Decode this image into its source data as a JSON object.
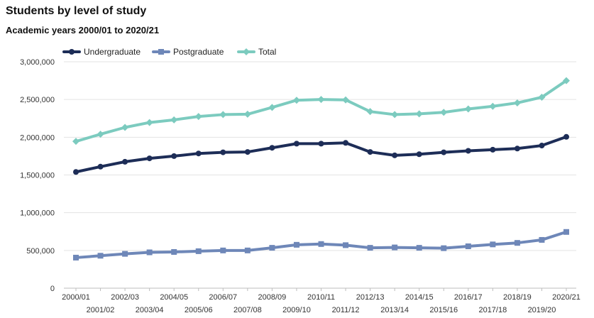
{
  "chart_data": {
    "type": "line",
    "title": "Students by level of study",
    "subtitle": "Academic years 2000/01 to 2020/21",
    "xlabel": "",
    "ylabel": "",
    "ylim": [
      0,
      3000000
    ],
    "yticks": [
      0,
      500000,
      1000000,
      1500000,
      2000000,
      2500000,
      3000000
    ],
    "ytick_labels": [
      "0",
      "500,000",
      "1,000,000",
      "1,500,000",
      "2,000,000",
      "2,500,000",
      "3,000,000"
    ],
    "grid": true,
    "legend_position": "top-left",
    "categories": [
      "2000/01",
      "2001/02",
      "2002/03",
      "2003/04",
      "2004/05",
      "2005/06",
      "2006/07",
      "2007/08",
      "2008/09",
      "2009/10",
      "2010/11",
      "2011/12",
      "2012/13",
      "2013/14",
      "2014/15",
      "2015/16",
      "2016/17",
      "2017/18",
      "2018/19",
      "2019/20",
      "2020/21"
    ],
    "series": [
      {
        "name": "Undergraduate",
        "color": "#1d2d57",
        "marker": "circle",
        "values": [
          1540000,
          1610000,
          1675000,
          1720000,
          1750000,
          1785000,
          1800000,
          1805000,
          1860000,
          1915000,
          1915000,
          1925000,
          1805000,
          1760000,
          1775000,
          1800000,
          1820000,
          1835000,
          1850000,
          1890000,
          2005000
        ]
      },
      {
        "name": "Postgraduate",
        "color": "#6e87b8",
        "marker": "square",
        "values": [
          405000,
          430000,
          455000,
          475000,
          480000,
          490000,
          500000,
          500000,
          535000,
          575000,
          585000,
          570000,
          535000,
          540000,
          535000,
          530000,
          555000,
          580000,
          600000,
          640000,
          745000
        ]
      },
      {
        "name": "Total",
        "color": "#7ccbbf",
        "marker": "diamond",
        "values": [
          1945000,
          2040000,
          2130000,
          2195000,
          2230000,
          2275000,
          2300000,
          2305000,
          2395000,
          2490000,
          2500000,
          2495000,
          2340000,
          2300000,
          2310000,
          2330000,
          2375000,
          2410000,
          2455000,
          2530000,
          2750000
        ]
      }
    ]
  }
}
